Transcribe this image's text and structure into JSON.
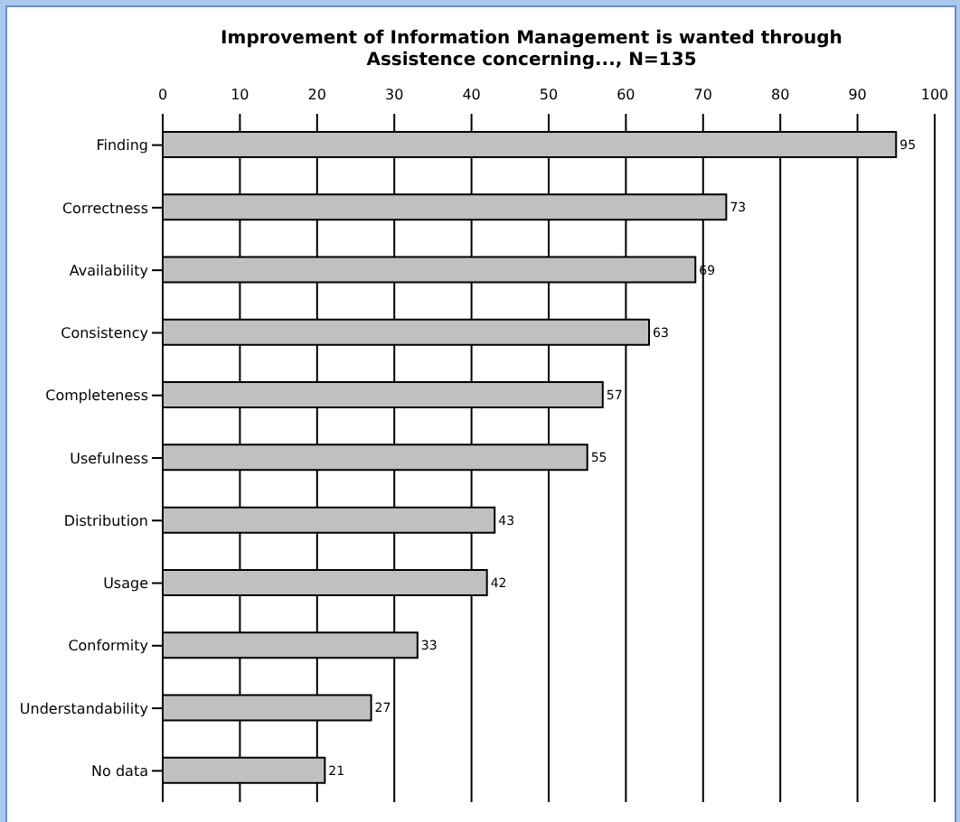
{
  "chart_data": {
    "type": "bar",
    "orientation": "horizontal",
    "title": "Improvement of Information Management is wanted through Assistence concerning..., N=135",
    "categories": [
      "Finding",
      "Correctness",
      "Availability",
      "Consistency",
      "Completeness",
      "Usefulness",
      "Distribution",
      "Usage",
      "Conformity",
      "Understandability",
      "No data"
    ],
    "values": [
      95,
      73,
      69,
      63,
      57,
      55,
      43,
      42,
      33,
      27,
      21
    ],
    "color": "#c0c0c0",
    "xlim": [
      0,
      100
    ],
    "xticks": [
      0,
      10,
      20,
      30,
      40,
      50,
      60,
      70,
      80,
      90,
      100
    ],
    "grid": "x",
    "data_labels": true
  }
}
